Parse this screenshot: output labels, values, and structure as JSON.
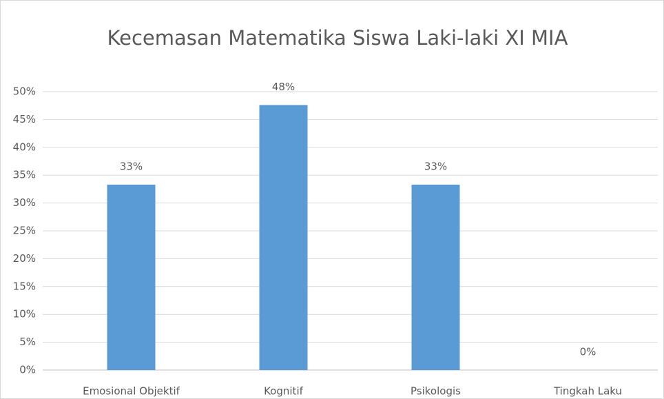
{
  "chart_data": {
    "type": "bar",
    "title": "Kecemasan  Matematika Siswa Laki-laki XI MIA",
    "categories": [
      "Emosional Objektif",
      "Kognitif",
      "Psikologis",
      "Tingkah Laku"
    ],
    "values": [
      33.3,
      47.6,
      33.3,
      0
    ],
    "value_labels": [
      "33%",
      "48%",
      "33%",
      "0%"
    ],
    "color": "#5b9bd5",
    "ylim": [
      0,
      50
    ],
    "yticks": [
      {
        "value": 0,
        "label": "0%"
      },
      {
        "value": 5,
        "label": "5%"
      },
      {
        "value": 10,
        "label": "10%"
      },
      {
        "value": 15,
        "label": "15%"
      },
      {
        "value": 20,
        "label": "20%"
      },
      {
        "value": 25,
        "label": "25%"
      },
      {
        "value": 30,
        "label": "30%"
      },
      {
        "value": 35,
        "label": "35%"
      },
      {
        "value": 40,
        "label": "40%"
      },
      {
        "value": 45,
        "label": "45%"
      },
      {
        "value": 50,
        "label": "50%"
      }
    ],
    "grid": true
  }
}
